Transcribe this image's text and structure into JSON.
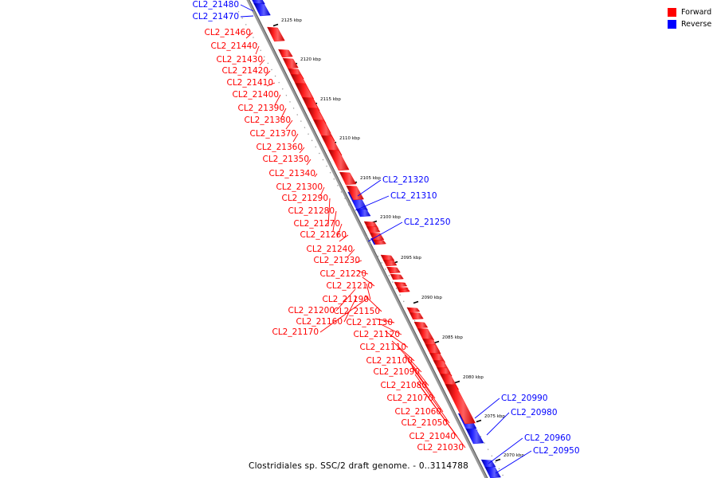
{
  "legend": {
    "forward": {
      "label": "Forward",
      "color": "#ff0000"
    },
    "reverse": {
      "label": "Reverse",
      "color": "#0000ff"
    }
  },
  "caption": "Clostridiales sp. SSC/2 draft genome. - 0..3114788",
  "ticks": [
    "2125 kbp",
    "2120 kbp",
    "2115 kbp",
    "2110 kbp",
    "2105 kbp",
    "2100 kbp",
    "2095 kbp",
    "2090 kbp",
    "2085 kbp",
    "2080 kbp",
    "2075 kbp",
    "2070 kbp"
  ],
  "genes": [
    {
      "label": "CL2_21480",
      "strand": "reverse"
    },
    {
      "label": "CL2_21470",
      "strand": "reverse"
    },
    {
      "label": "CL2_21460",
      "strand": "forward"
    },
    {
      "label": "CL2_21440",
      "strand": "forward"
    },
    {
      "label": "CL2_21430",
      "strand": "forward"
    },
    {
      "label": "CL2_21420",
      "strand": "forward"
    },
    {
      "label": "CL2_21410",
      "strand": "forward"
    },
    {
      "label": "CL2_21400",
      "strand": "forward"
    },
    {
      "label": "CL2_21390",
      "strand": "forward"
    },
    {
      "label": "CL2_21380",
      "strand": "forward"
    },
    {
      "label": "CL2_21370",
      "strand": "forward"
    },
    {
      "label": "CL2_21360",
      "strand": "forward"
    },
    {
      "label": "CL2_21350",
      "strand": "forward"
    },
    {
      "label": "CL2_21340",
      "strand": "forward"
    },
    {
      "label": "CL2_21320",
      "strand": "reverse"
    },
    {
      "label": "CL2_21300",
      "strand": "forward"
    },
    {
      "label": "CL2_21310",
      "strand": "reverse"
    },
    {
      "label": "CL2_21290",
      "strand": "forward"
    },
    {
      "label": "CL2_21280",
      "strand": "forward"
    },
    {
      "label": "CL2_21250",
      "strand": "reverse"
    },
    {
      "label": "CL2_21270",
      "strand": "forward"
    },
    {
      "label": "CL2_21260",
      "strand": "forward"
    },
    {
      "label": "CL2_21240",
      "strand": "forward"
    },
    {
      "label": "CL2_21230",
      "strand": "forward"
    },
    {
      "label": "CL2_21220",
      "strand": "forward"
    },
    {
      "label": "CL2_21210",
      "strand": "forward"
    },
    {
      "label": "CL2_21190",
      "strand": "forward"
    },
    {
      "label": "CL2_21200",
      "strand": "forward"
    },
    {
      "label": "CL2_21150",
      "strand": "forward"
    },
    {
      "label": "CL2_21160",
      "strand": "forward"
    },
    {
      "label": "CL2_21130",
      "strand": "forward"
    },
    {
      "label": "CL2_21170",
      "strand": "forward"
    },
    {
      "label": "CL2_21120",
      "strand": "forward"
    },
    {
      "label": "CL2_21110",
      "strand": "forward"
    },
    {
      "label": "CL2_21100",
      "strand": "forward"
    },
    {
      "label": "CL2_21090",
      "strand": "forward"
    },
    {
      "label": "CL2_21080",
      "strand": "forward"
    },
    {
      "label": "CL2_21070",
      "strand": "forward"
    },
    {
      "label": "CL2_20990",
      "strand": "reverse"
    },
    {
      "label": "CL2_21060",
      "strand": "forward"
    },
    {
      "label": "CL2_20980",
      "strand": "reverse"
    },
    {
      "label": "CL2_21050",
      "strand": "forward"
    },
    {
      "label": "CL2_21040",
      "strand": "forward"
    },
    {
      "label": "CL2_20960",
      "strand": "reverse"
    },
    {
      "label": "CL2_21030",
      "strand": "forward"
    },
    {
      "label": "CL2_20950",
      "strand": "reverse"
    }
  ]
}
